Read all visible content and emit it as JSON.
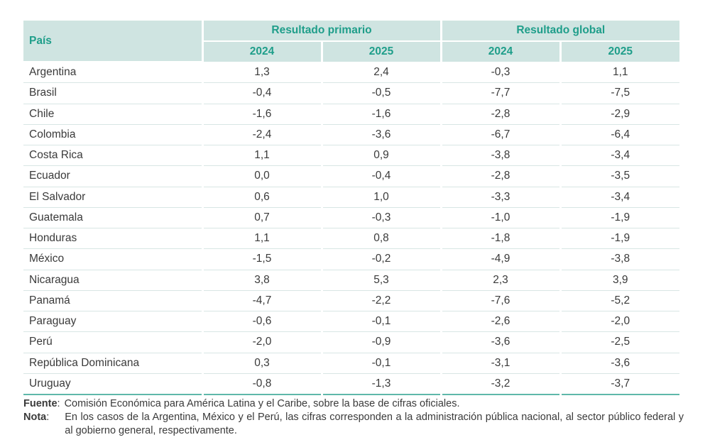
{
  "table": {
    "header_country": "País",
    "groups": [
      "Resultado primario",
      "Resultado global"
    ],
    "years": [
      "2024",
      "2025",
      "2024",
      "2025"
    ],
    "rows": [
      {
        "country": "Argentina",
        "values": [
          "1,3",
          "2,4",
          "-0,3",
          "1,1"
        ]
      },
      {
        "country": "Brasil",
        "values": [
          "-0,4",
          "-0,5",
          "-7,7",
          "-7,5"
        ]
      },
      {
        "country": "Chile",
        "values": [
          "-1,6",
          "-1,6",
          "-2,8",
          "-2,9"
        ]
      },
      {
        "country": "Colombia",
        "values": [
          "-2,4",
          "-3,6",
          "-6,7",
          "-6,4"
        ]
      },
      {
        "country": "Costa Rica",
        "values": [
          "1,1",
          "0,9",
          "-3,8",
          "-3,4"
        ]
      },
      {
        "country": "Ecuador",
        "values": [
          "0,0",
          "-0,4",
          "-2,8",
          "-3,5"
        ]
      },
      {
        "country": "El Salvador",
        "values": [
          "0,6",
          "1,0",
          "-3,3",
          "-3,4"
        ]
      },
      {
        "country": "Guatemala",
        "values": [
          "0,7",
          "-0,3",
          "-1,0",
          "-1,9"
        ]
      },
      {
        "country": "Honduras",
        "values": [
          "1,1",
          "0,8",
          "-1,8",
          "-1,9"
        ]
      },
      {
        "country": "México",
        "values": [
          "-1,5",
          "-0,2",
          "-4,9",
          "-3,8"
        ]
      },
      {
        "country": "Nicaragua",
        "values": [
          "3,8",
          "5,3",
          "2,3",
          "3,9"
        ]
      },
      {
        "country": "Panamá",
        "values": [
          "-4,7",
          "-2,2",
          "-7,6",
          "-5,2"
        ]
      },
      {
        "country": "Paraguay",
        "values": [
          "-0,6",
          "-0,1",
          "-2,6",
          "-2,0"
        ]
      },
      {
        "country": "Perú",
        "values": [
          "-2,0",
          "-0,9",
          "-3,6",
          "-2,5"
        ]
      },
      {
        "country": "República Dominicana",
        "values": [
          "0,3",
          "-0,1",
          "-3,1",
          "-3,6"
        ]
      },
      {
        "country": "Uruguay",
        "values": [
          "-0,8",
          "-1,3",
          "-3,2",
          "-3,7"
        ]
      }
    ]
  },
  "notes": {
    "source_label": "Fuente",
    "source_text": "Comisión Económica para América Latina y el Caribe, sobre la base de cifras oficiales.",
    "note_label": "Nota",
    "note_text": "En los casos de la Argentina, México y el Perú, las cifras corresponden a la administración pública nacional, al sector público federal y al gobierno general, respectivamente."
  },
  "colors": {
    "header_bg": "#cfe4e1",
    "header_text": "#1f9e8a",
    "bottom_rule": "#5fb8aa",
    "row_rule": "#d8e6e4"
  }
}
